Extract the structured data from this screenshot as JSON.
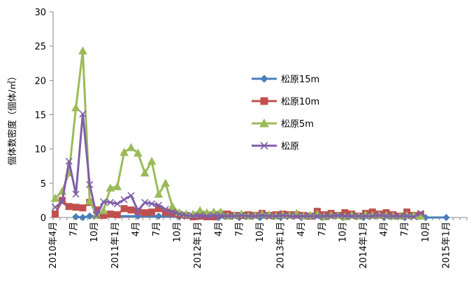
{
  "chart_data": {
    "type": "line",
    "title": "",
    "ylabel": "個体数密度（個体/㎡）",
    "xlabel": "",
    "ylim": [
      0,
      30
    ],
    "yticks": [
      0,
      5,
      10,
      15,
      20,
      25,
      30
    ],
    "x_tick_labels": [
      "2010年4月",
      "7月",
      "10月",
      "2011年1月",
      "4月",
      "7月",
      "10月",
      "2012年1月",
      "4月",
      "7月",
      "10月",
      "2013年1月",
      "4月",
      "7月",
      "10月",
      "2014年1月",
      "4月",
      "7月",
      "10月",
      "2015年1月"
    ],
    "x_tick_month_index": [
      0,
      3,
      6,
      9,
      12,
      15,
      18,
      21,
      24,
      27,
      30,
      33,
      36,
      39,
      42,
      45,
      48,
      51,
      54,
      57
    ],
    "x_range_months": [
      0,
      60
    ],
    "grid": "none",
    "legend_placement": "right",
    "series": [
      {
        "name": "松原15m",
        "color": "#4a7ebb",
        "marker": "diamond",
        "points": [
          [
            3.3,
            0.1
          ],
          [
            4.3,
            0.0
          ],
          [
            5.3,
            0.2
          ],
          [
            12.3,
            0.2
          ],
          [
            15.3,
            0.2
          ],
          [
            18.3,
            0.1
          ],
          [
            21,
            0.1
          ],
          [
            24,
            0.0
          ],
          [
            27,
            0.0
          ],
          [
            30,
            0.0
          ],
          [
            33,
            0.0
          ],
          [
            36,
            0.0
          ],
          [
            39,
            0.0
          ],
          [
            42,
            0.0
          ],
          [
            45,
            0.0
          ],
          [
            48,
            0.0
          ],
          [
            51,
            0.0
          ],
          [
            54,
            0.0
          ],
          [
            57,
            0.0
          ]
        ]
      },
      {
        "name": "松原10m",
        "color": "#c0504d",
        "marker": "square",
        "points": [
          [
            0.3,
            0.5
          ],
          [
            1.3,
            2.5
          ],
          [
            2.3,
            1.6
          ],
          [
            3.3,
            1.5
          ],
          [
            4.3,
            1.4
          ],
          [
            5.3,
            2.2
          ],
          [
            6.3,
            1.1
          ],
          [
            7.3,
            0.3
          ],
          [
            8.3,
            0.5
          ],
          [
            9.3,
            0.4
          ],
          [
            10.3,
            1.3
          ],
          [
            11.3,
            1.1
          ],
          [
            12.3,
            0.9
          ],
          [
            13.3,
            0.7
          ],
          [
            14.3,
            0.8
          ],
          [
            15.3,
            1.3
          ],
          [
            16.3,
            0.8
          ],
          [
            17.3,
            0.6
          ],
          [
            18.3,
            0.4
          ],
          [
            19.3,
            0.3
          ],
          [
            20.3,
            0.1
          ],
          [
            21.3,
            0.2
          ],
          [
            22.3,
            0.1
          ],
          [
            23.3,
            0.1
          ],
          [
            24.3,
            0.5
          ],
          [
            25.3,
            0.5
          ],
          [
            26.3,
            0.3
          ],
          [
            27.3,
            0.3
          ],
          [
            28.3,
            0.4
          ],
          [
            29.3,
            0.3
          ],
          [
            30.3,
            0.6
          ],
          [
            31.3,
            0.3
          ],
          [
            32.3,
            0.4
          ],
          [
            33.3,
            0.5
          ],
          [
            34.3,
            0.4
          ],
          [
            35.3,
            0.4
          ],
          [
            36.3,
            0.3
          ],
          [
            37.3,
            0.2
          ],
          [
            38.3,
            0.9
          ],
          [
            39.3,
            0.4
          ],
          [
            40.3,
            0.6
          ],
          [
            41.3,
            0.3
          ],
          [
            42.3,
            0.7
          ],
          [
            43.3,
            0.5
          ],
          [
            44.3,
            0.2
          ],
          [
            45.3,
            0.6
          ],
          [
            46.3,
            0.8
          ],
          [
            47.3,
            0.5
          ],
          [
            48.3,
            0.7
          ],
          [
            49.3,
            0.4
          ],
          [
            50.3,
            0.2
          ],
          [
            51.3,
            0.8
          ],
          [
            52.3,
            0.3
          ],
          [
            53.3,
            0.4
          ]
        ]
      },
      {
        "name": "松原5m",
        "color": "#9bbb59",
        "marker": "triangle",
        "points": [
          [
            0.3,
            2.8
          ],
          [
            1.3,
            3.8
          ],
          [
            2.3,
            6.5
          ],
          [
            3.3,
            16
          ],
          [
            4.3,
            24.3
          ],
          [
            5.3,
            2.4
          ],
          [
            6.3,
            0.3
          ],
          [
            7.3,
            1.0
          ],
          [
            8.3,
            4.3
          ],
          [
            9.3,
            4.5
          ],
          [
            10.3,
            9.5
          ],
          [
            11.3,
            10.2
          ],
          [
            12.3,
            9.4
          ],
          [
            13.3,
            6.5
          ],
          [
            14.3,
            8.2
          ],
          [
            15.3,
            3.4
          ],
          [
            16.3,
            5.0
          ],
          [
            17.3,
            1.6
          ],
          [
            18.3,
            0.7
          ],
          [
            19.3,
            0.5
          ],
          [
            20.3,
            0.5
          ],
          [
            21.3,
            1.0
          ],
          [
            22.3,
            0.7
          ],
          [
            23.3,
            0.8
          ],
          [
            24.3,
            0.8
          ],
          [
            25.3,
            0.2
          ],
          [
            26.3,
            0.3
          ],
          [
            27.3,
            0.5
          ],
          [
            28.3,
            0.2
          ],
          [
            29.3,
            0.3
          ],
          [
            30.3,
            0.5
          ],
          [
            31.3,
            0.4
          ],
          [
            32.3,
            0.2
          ],
          [
            33.3,
            0.4
          ],
          [
            34.3,
            0.3
          ],
          [
            35.3,
            0.6
          ],
          [
            36.3,
            0.2
          ],
          [
            37.3,
            0.3
          ],
          [
            38.3,
            0.5
          ],
          [
            39.3,
            0.1
          ],
          [
            40.3,
            0.3
          ],
          [
            41.3,
            0.3
          ],
          [
            42.3,
            0.1
          ],
          [
            43.3,
            0.3
          ],
          [
            44.3,
            0.2
          ],
          [
            45.3,
            0.4
          ],
          [
            46.3,
            0.3
          ],
          [
            47.3,
            0.3
          ],
          [
            48.3,
            0.3
          ],
          [
            49.3,
            0.2
          ],
          [
            50.3,
            0.2
          ],
          [
            51.3,
            0.3
          ],
          [
            52.3,
            0.3
          ],
          [
            53.3,
            0.2
          ]
        ]
      },
      {
        "name": "松原",
        "color": "#7f5fa8",
        "marker": "x",
        "points": [
          [
            0.3,
            1.5
          ],
          [
            1.3,
            2.2
          ],
          [
            2.3,
            8.2
          ],
          [
            3.3,
            3.4
          ],
          [
            4.3,
            15.1
          ],
          [
            5.3,
            4.8
          ],
          [
            6.3,
            0.3
          ],
          [
            7.3,
            2.3
          ],
          [
            8.3,
            2.2
          ],
          [
            9.3,
            2.0
          ],
          [
            10.3,
            2.6
          ],
          [
            11.3,
            3.2
          ],
          [
            12.3,
            1.0
          ],
          [
            13.3,
            2.2
          ],
          [
            14.3,
            2.0
          ],
          [
            15.3,
            1.8
          ],
          [
            16.3,
            1.2
          ],
          [
            17.3,
            0.8
          ],
          [
            18.3,
            0.5
          ],
          [
            19.3,
            0.3
          ],
          [
            20.3,
            0.2
          ],
          [
            21.3,
            0.3
          ],
          [
            22.3,
            0.2
          ],
          [
            23.3,
            0.3
          ],
          [
            24.3,
            0.3
          ],
          [
            25.3,
            0.2
          ],
          [
            26.3,
            0.2
          ],
          [
            27.3,
            0.3
          ],
          [
            28.3,
            0.2
          ],
          [
            29.3,
            0.2
          ],
          [
            30.3,
            0.3
          ],
          [
            31.3,
            0.2
          ],
          [
            32.3,
            0.2
          ],
          [
            33.3,
            0.3
          ],
          [
            34.3,
            0.2
          ],
          [
            35.3,
            0.2
          ],
          [
            36.3,
            0.2
          ],
          [
            37.3,
            0.2
          ],
          [
            38.3,
            0.2
          ],
          [
            39.3,
            0.2
          ],
          [
            40.3,
            0.2
          ],
          [
            41.3,
            0.3
          ],
          [
            42.3,
            0.2
          ],
          [
            43.3,
            0.2
          ],
          [
            44.3,
            0.2
          ],
          [
            45.3,
            0.2
          ],
          [
            46.3,
            0.2
          ],
          [
            47.3,
            0.3
          ],
          [
            48.3,
            0.2
          ],
          [
            49.3,
            0.2
          ],
          [
            50.3,
            0.2
          ],
          [
            51.3,
            0.2
          ],
          [
            52.3,
            0.1
          ],
          [
            53.3,
            0.6
          ]
        ]
      }
    ]
  }
}
